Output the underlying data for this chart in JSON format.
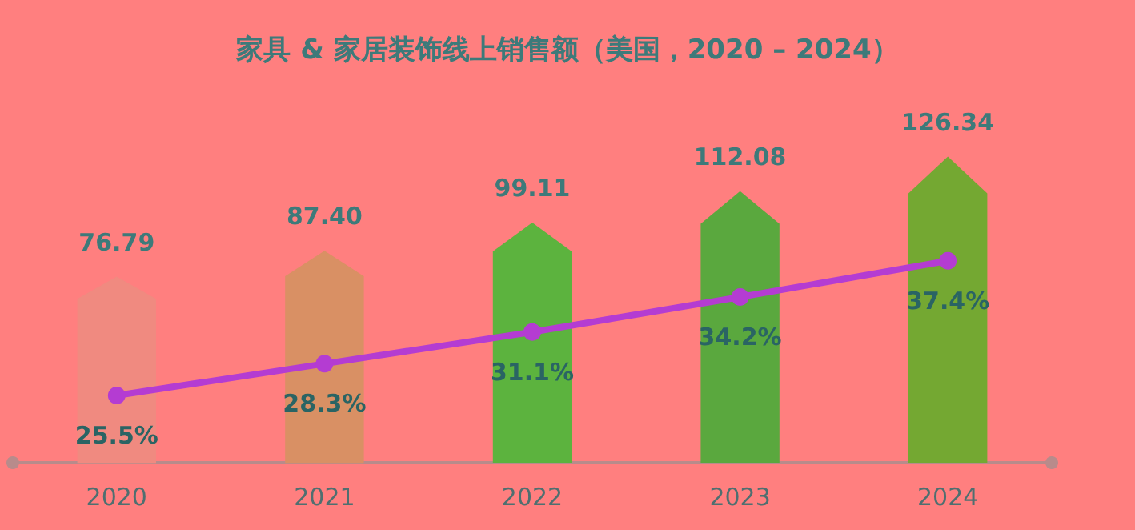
{
  "chart_data": {
    "type": "bar",
    "title": "家具 & 家居装饰线上销售额（美国，2020 – 2024）",
    "categories": [
      "2020",
      "2021",
      "2022",
      "2023",
      "2024"
    ],
    "series": [
      {
        "colors": [
          "#f08a80",
          "#d99064",
          "#5cb33e",
          "#5aa83e",
          "#74a832"
        ],
        "values": [
          76.79,
          87.4,
          99.11,
          112.08,
          126.34
        ],
        "value_labels": [
          "76.79",
          "87.40",
          "99.11",
          "112.08",
          "126.34"
        ]
      },
      {
        "type": "line",
        "axis": "y2",
        "color": "#b43cd2",
        "values": [
          25.5,
          28.3,
          31.1,
          34.2,
          37.4
        ],
        "value_labels": [
          "25.5%",
          "28.3%",
          "31.1%",
          "34.2%",
          "37.4%"
        ]
      }
    ],
    "marker": "circle"
  }
}
